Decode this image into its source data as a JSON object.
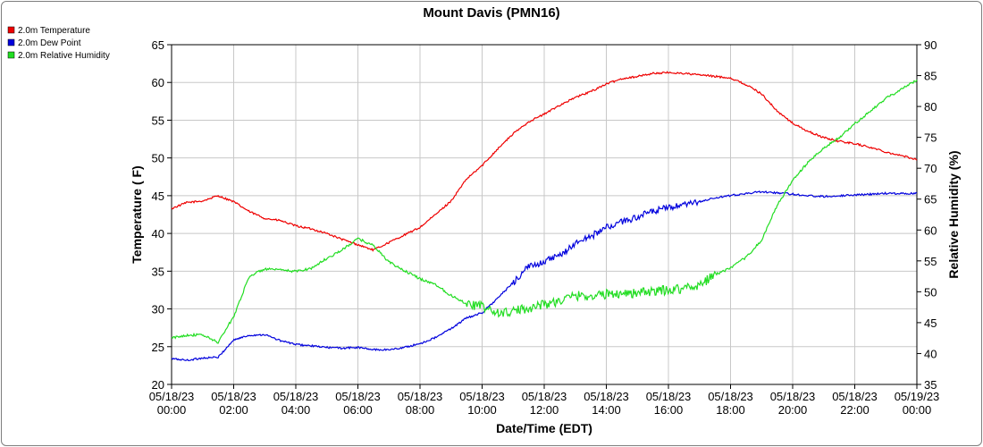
{
  "chart_data": {
    "type": "line",
    "title": "Mount Davis (PMN16)",
    "xlabel": "Date/Time (EDT)",
    "ylabel_left": "Temperature ( F)",
    "ylabel_right": "Relative Humidity (%)",
    "ylim_left": [
      20,
      65
    ],
    "ylim_right": [
      35,
      90
    ],
    "xlim_hours": [
      0,
      24
    ],
    "grid": true,
    "legend_position": "top-left",
    "x_tick_labels": [
      {
        "hour": 0,
        "date": "05/18/23",
        "time": "00:00"
      },
      {
        "hour": 2,
        "date": "05/18/23",
        "time": "02:00"
      },
      {
        "hour": 4,
        "date": "05/18/23",
        "time": "04:00"
      },
      {
        "hour": 6,
        "date": "05/18/23",
        "time": "06:00"
      },
      {
        "hour": 8,
        "date": "05/18/23",
        "time": "08:00"
      },
      {
        "hour": 10,
        "date": "05/18/23",
        "time": "10:00"
      },
      {
        "hour": 12,
        "date": "05/18/23",
        "time": "12:00"
      },
      {
        "hour": 14,
        "date": "05/18/23",
        "time": "14:00"
      },
      {
        "hour": 16,
        "date": "05/18/23",
        "time": "16:00"
      },
      {
        "hour": 18,
        "date": "05/18/23",
        "time": "18:00"
      },
      {
        "hour": 20,
        "date": "05/18/23",
        "time": "20:00"
      },
      {
        "hour": 22,
        "date": "05/18/23",
        "time": "22:00"
      },
      {
        "hour": 24,
        "date": "05/19/23",
        "time": "00:00"
      }
    ],
    "y_ticks_left": [
      20,
      25,
      30,
      35,
      40,
      45,
      50,
      55,
      60,
      65
    ],
    "y_ticks_right": [
      35,
      40,
      45,
      50,
      55,
      60,
      65,
      70,
      75,
      80,
      85,
      90
    ],
    "x": [
      0,
      0.5,
      1,
      1.5,
      2,
      2.5,
      3,
      3.5,
      4,
      4.5,
      5,
      5.5,
      6,
      6.5,
      7,
      7.5,
      8,
      8.5,
      9,
      9.5,
      10,
      10.5,
      11,
      11.5,
      12,
      12.5,
      13,
      13.5,
      14,
      14.5,
      15,
      15.5,
      16,
      16.5,
      17,
      17.5,
      18,
      18.5,
      19,
      19.5,
      20,
      20.5,
      21,
      21.5,
      22,
      22.5,
      23,
      23.5,
      24
    ],
    "series": [
      {
        "name": "2.0m Temperature",
        "axis": "left",
        "color": "#ee0000",
        "values": [
          43.3,
          44.1,
          44.3,
          45.0,
          44.2,
          42.9,
          42.0,
          41.7,
          41.0,
          40.6,
          40.0,
          39.2,
          38.5,
          37.8,
          38.8,
          39.8,
          40.8,
          42.5,
          44.3,
          47.2,
          49.0,
          51.2,
          53.2,
          54.8,
          55.8,
          57.0,
          58.0,
          58.8,
          59.8,
          60.5,
          60.8,
          61.2,
          61.3,
          61.2,
          61.0,
          60.8,
          60.6,
          59.7,
          58.5,
          56.2,
          54.6,
          53.5,
          52.7,
          52.2,
          51.9,
          51.4,
          50.8,
          50.3,
          49.8
        ]
      },
      {
        "name": "2.0m Dew Point",
        "axis": "left",
        "color": "#0000dd",
        "values": [
          23.4,
          23.2,
          23.5,
          23.6,
          25.9,
          26.5,
          26.6,
          25.8,
          25.3,
          25.1,
          24.9,
          24.8,
          24.9,
          24.6,
          24.6,
          24.9,
          25.4,
          26.2,
          27.4,
          28.8,
          29.5,
          31.4,
          33.5,
          35.6,
          36.3,
          37.0,
          38.7,
          39.6,
          40.8,
          41.5,
          42.2,
          42.9,
          43.4,
          43.7,
          44.2,
          44.7,
          45.0,
          45.3,
          45.5,
          45.4,
          45.2,
          45.0,
          44.9,
          45.0,
          45.1,
          45.2,
          45.3,
          45.3,
          45.3
        ]
      },
      {
        "name": "2.0m Relative Humidity",
        "axis": "right",
        "color": "#22dd22",
        "values": [
          42.5,
          43.0,
          43.0,
          41.8,
          46.0,
          52.5,
          53.7,
          53.5,
          53.3,
          53.8,
          55.4,
          56.8,
          58.6,
          57.5,
          54.8,
          53.4,
          52.1,
          51.2,
          49.4,
          48.1,
          47.6,
          46.5,
          46.8,
          47.4,
          48.0,
          48.5,
          49.4,
          49.3,
          49.6,
          49.8,
          49.8,
          50.0,
          50.3,
          50.6,
          51.1,
          52.8,
          53.8,
          55.6,
          58.3,
          64.0,
          68.0,
          71.0,
          73.2,
          75.0,
          77.2,
          79.2,
          81.3,
          82.8,
          84.3
        ]
      }
    ]
  }
}
